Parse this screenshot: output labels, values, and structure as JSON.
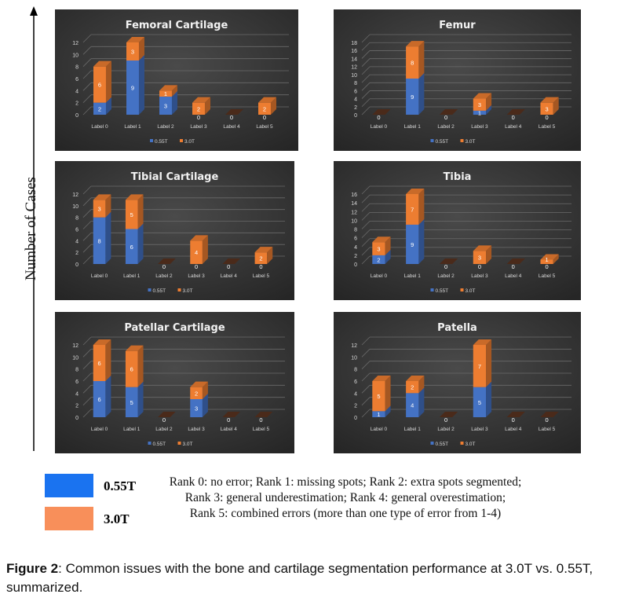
{
  "colors": {
    "s055": "#4472c4",
    "s30": "#ed7d31",
    "legend055": "#1a73f0",
    "legend30": "#f88f5a"
  },
  "y_axis_label": "Number of Cases",
  "legend": {
    "s055": "0.55T",
    "s30": "3.0T"
  },
  "rank_text": [
    "Rank 0: no error; Rank 1: missing spots; Rank 2: extra spots segmented;",
    "Rank 3: general underestimation; Rank 4: general overestimation;",
    "Rank 5: combined errors (more than one type of error from 1-4)"
  ],
  "caption": {
    "label": "Figure 2",
    "text": ": Common issues with the bone and cartilage segmentation performance at 3.0T vs. 0.55T, summarized."
  },
  "chart_data": [
    {
      "type": "bar",
      "stacked": true,
      "title": "Femoral Cartilage",
      "categories": [
        "Label 0",
        "Label 1",
        "Label 2",
        "Label 3",
        "Label 4",
        "Label 5"
      ],
      "series": [
        {
          "name": "0.55T",
          "values": [
            2,
            9,
            3,
            0,
            0,
            0
          ]
        },
        {
          "name": "3.0T",
          "values": [
            6,
            3,
            1,
            2,
            0,
            2
          ]
        }
      ],
      "ylim": [
        0,
        12
      ],
      "ystep": 2,
      "grid": true,
      "legend": "bottom"
    },
    {
      "type": "bar",
      "stacked": true,
      "title": "Femur",
      "categories": [
        "Label 0",
        "Label 1",
        "Label 2",
        "Label 3",
        "Label 4",
        "Label 5"
      ],
      "series": [
        {
          "name": "0.55T",
          "values": [
            0,
            9,
            0,
            1,
            0,
            0
          ]
        },
        {
          "name": "3.0T",
          "values": [
            0,
            8,
            0,
            3,
            0,
            3
          ]
        }
      ],
      "ylim": [
        0,
        18
      ],
      "ystep": 2,
      "grid": true,
      "legend": "bottom"
    },
    {
      "type": "bar",
      "stacked": true,
      "title": "Tibial Cartilage",
      "categories": [
        "Label 0",
        "Label 1",
        "Label 2",
        "Label 3",
        "Label 4",
        "Label 5"
      ],
      "series": [
        {
          "name": "0.55T",
          "values": [
            8,
            6,
            0,
            0,
            0,
            0
          ]
        },
        {
          "name": "3.0T",
          "values": [
            3,
            5,
            0,
            4,
            0,
            2
          ]
        }
      ],
      "ylim": [
        0,
        12
      ],
      "ystep": 2,
      "grid": true,
      "legend": "bottom"
    },
    {
      "type": "bar",
      "stacked": true,
      "title": "Tibia",
      "categories": [
        "Label 0",
        "Label 1",
        "Label 2",
        "Label 3",
        "Label 4",
        "Label 5"
      ],
      "series": [
        {
          "name": "0.55T",
          "values": [
            2,
            9,
            0,
            0,
            0,
            0
          ]
        },
        {
          "name": "3.0T",
          "values": [
            3,
            7,
            0,
            3,
            0,
            1
          ]
        }
      ],
      "ylim": [
        0,
        16
      ],
      "ystep": 2,
      "grid": true,
      "legend": "bottom"
    },
    {
      "type": "bar",
      "stacked": true,
      "title": "Patellar Cartilage",
      "categories": [
        "Label 0",
        "Label 1",
        "Label 2",
        "Label 3",
        "Label 4",
        "Label 5"
      ],
      "series": [
        {
          "name": "0.55T",
          "values": [
            6,
            5,
            0,
            3,
            0,
            0
          ]
        },
        {
          "name": "3.0T",
          "values": [
            6,
            6,
            0,
            2,
            0,
            0
          ]
        }
      ],
      "ylim": [
        0,
        12
      ],
      "ystep": 2,
      "grid": true,
      "legend": "bottom"
    },
    {
      "type": "bar",
      "stacked": true,
      "title": "Patella",
      "categories": [
        "Label 0",
        "Label 1",
        "Label 2",
        "Label 3",
        "Label 4",
        "Label 5"
      ],
      "series": [
        {
          "name": "0.55T",
          "values": [
            1,
            4,
            0,
            5,
            0,
            0
          ]
        },
        {
          "name": "3.0T",
          "values": [
            5,
            2,
            0,
            7,
            0,
            0
          ]
        }
      ],
      "ylim": [
        0,
        12
      ],
      "ystep": 2,
      "grid": true,
      "legend": "bottom"
    }
  ]
}
